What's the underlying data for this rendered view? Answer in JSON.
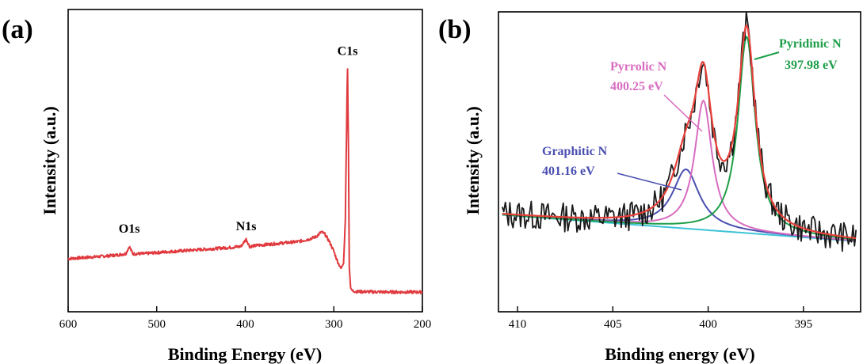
{
  "panels": {
    "a": {
      "label": "(a)"
    },
    "b": {
      "label": "(b)"
    }
  },
  "chart_data": [
    {
      "type": "line",
      "panel": "(a)",
      "title": "",
      "xlabel": "Binding Energy (eV)",
      "ylabel": "Intensity (a.u.)",
      "xlim": [
        600,
        200
      ],
      "xticks": [
        600,
        500,
        400,
        300,
        200
      ],
      "ylim": [
        0,
        100
      ],
      "grid": false,
      "line_color": "#e0393e",
      "annotations": [
        {
          "text": "O1s",
          "x": 531,
          "y": 22
        },
        {
          "text": "N1s",
          "x": 399,
          "y": 23
        },
        {
          "text": "C1s",
          "x": 284.5,
          "y": 95
        }
      ],
      "series": [
        {
          "x": [
            600,
            580,
            560,
            545,
            535,
            531,
            527,
            515,
            500,
            480,
            460,
            440,
            420,
            405,
            399,
            395,
            385,
            370,
            355,
            340,
            328,
            320,
            314,
            310,
            305,
            300,
            296,
            292,
            289,
            287,
            285.5,
            284.6,
            283.5,
            282.5,
            281,
            279,
            275,
            260,
            240,
            220,
            200
          ],
          "y": [
            14,
            14.5,
            15,
            15.5,
            16,
            19,
            16,
            16,
            16.5,
            17,
            17.5,
            18,
            18.5,
            19,
            22,
            19,
            19.5,
            20,
            20.5,
            21,
            22,
            23,
            25,
            24,
            21,
            17,
            13,
            10,
            12,
            30,
            70,
            95,
            60,
            10,
            2,
            0.8,
            0.5,
            0.4,
            0.3,
            0.3,
            0.3
          ]
        }
      ]
    },
    {
      "type": "line",
      "panel": "(b)",
      "title": "",
      "xlabel": "Binding energy (eV)",
      "ylabel": "Intensity (a.u.)",
      "xlim": [
        411,
        392
      ],
      "xticks": [
        410,
        405,
        400,
        395
      ],
      "ylim": [
        0,
        100
      ],
      "grid": false,
      "colors": {
        "raw": "#1a1a1a",
        "fit": "#e8403a",
        "pyridinic": "#1e9e48",
        "pyrrolic": "#d86cc0",
        "graphitic": "#4a4fb0",
        "background": "#3cc3d8"
      },
      "annotations": [
        {
          "text": "Pyridinic N",
          "energy": "397.98 eV"
        },
        {
          "text": "Pyrrolic N",
          "energy": "400.25 eV"
        },
        {
          "text": "Graphitic N",
          "energy": "401.16 eV"
        }
      ],
      "peaks": [
        {
          "name": "Pyridinic N",
          "center": 397.98,
          "height": 73,
          "width": 0.55
        },
        {
          "name": "Pyrrolic N",
          "center": 400.25,
          "height": 48,
          "width": 0.55
        },
        {
          "name": "Graphitic N",
          "center": 401.16,
          "height": 22,
          "width": 0.85
        }
      ],
      "background_line": {
        "x": [
          411,
          392
        ],
        "y": [
          32,
          22
        ]
      }
    }
  ]
}
